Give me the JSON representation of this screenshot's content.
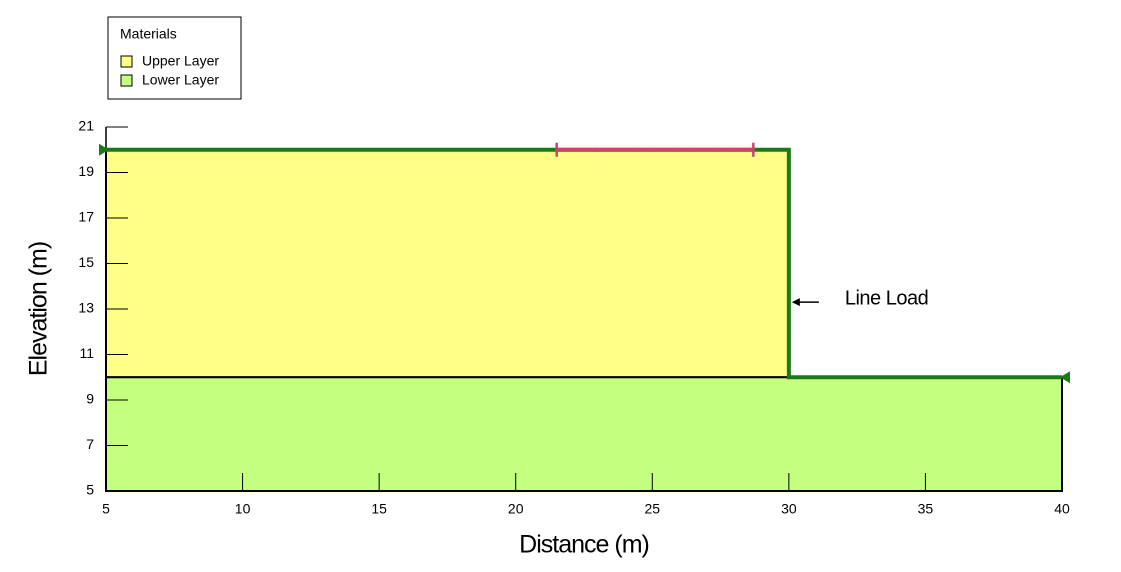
{
  "chart_data": {
    "type": "geometry",
    "x_label": "Distance (m)",
    "y_label": "Elevation (m)",
    "xlim": [
      5,
      40
    ],
    "ylim": [
      5,
      21
    ],
    "xticks": [
      5,
      10,
      15,
      20,
      25,
      30,
      35,
      40
    ],
    "yticks": [
      5,
      7,
      9,
      11,
      13,
      15,
      17,
      19,
      21
    ],
    "legend_title": "Materials",
    "regions": [
      {
        "name": "Upper Layer",
        "color": "#ffff88",
        "x": [
          5,
          5,
          30,
          30
        ],
        "y": [
          10,
          20,
          20,
          10
        ]
      },
      {
        "name": "Lower Layer",
        "color": "#c4ff80",
        "x": [
          5,
          5,
          30,
          40,
          40
        ],
        "y": [
          5,
          10,
          10,
          10,
          5
        ]
      }
    ],
    "ground_surface": {
      "color": "#1a7a1a",
      "x": [
        5,
        30,
        30,
        40
      ],
      "y": [
        20,
        20,
        10,
        10
      ]
    },
    "surcharge": {
      "color": "#c8466a",
      "x": [
        21.5,
        28.7
      ],
      "y": [
        20,
        20
      ]
    },
    "annotations": [
      {
        "text": "Line Load",
        "x": 30,
        "y": 13.3
      }
    ]
  }
}
